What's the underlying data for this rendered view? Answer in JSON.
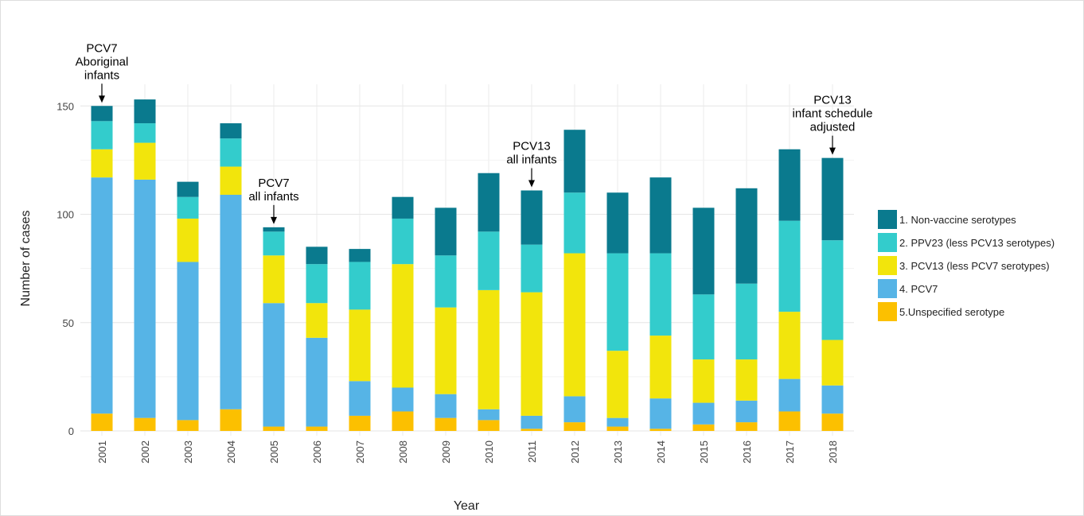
{
  "chart_data": {
    "type": "stacked_bar",
    "x_label": "Year",
    "y_label": "Number of cases",
    "categories": [
      "2001",
      "2002",
      "2003",
      "2004",
      "2005",
      "2006",
      "2007",
      "2008",
      "2009",
      "2010",
      "2011",
      "2012",
      "2013",
      "2014",
      "2015",
      "2016",
      "2017",
      "2018"
    ],
    "series": [
      {
        "name": "1. Non-vaccine serotypes",
        "color": "#0a7a8e",
        "values": [
          7,
          11,
          7,
          7,
          2,
          8,
          6,
          10,
          22,
          27,
          25,
          29,
          28,
          35,
          40,
          44,
          33,
          38
        ]
      },
      {
        "name": "2. PPV23 (less PCV13 serotypes)",
        "color": "#33cccc",
        "values": [
          13,
          9,
          10,
          13,
          11,
          18,
          22,
          21,
          24,
          27,
          22,
          28,
          45,
          38,
          30,
          35,
          42,
          46
        ]
      },
      {
        "name": "3. PCV13 (less PCV7 serotypes)",
        "color": "#f2e50c",
        "values": [
          13,
          17,
          20,
          13,
          22,
          16,
          33,
          57,
          40,
          55,
          57,
          66,
          31,
          29,
          20,
          19,
          31,
          21
        ]
      },
      {
        "name": "4. PCV7",
        "color": "#56b4e6",
        "values": [
          109,
          110,
          73,
          99,
          57,
          41,
          16,
          11,
          11,
          5,
          6,
          12,
          4,
          14,
          10,
          10,
          15,
          13
        ]
      },
      {
        "name": "5.Unspecified serotype",
        "color": "#fcc000",
        "values": [
          8,
          6,
          5,
          10,
          2,
          2,
          7,
          9,
          6,
          5,
          1,
          4,
          2,
          1,
          3,
          4,
          9,
          8
        ]
      }
    ],
    "ylim": [
      0,
      160
    ],
    "yticks": [
      0,
      50,
      100,
      150
    ],
    "grid": true,
    "legend": "right",
    "annotations": [
      {
        "x": "2001",
        "lines": [
          "PCV7",
          "Aboriginal",
          "infants"
        ]
      },
      {
        "x": "2005",
        "lines": [
          "PCV7",
          "all infants"
        ]
      },
      {
        "x": "2011",
        "lines": [
          "PCV13",
          "all infants"
        ]
      },
      {
        "x": "2018",
        "lines": [
          "PCV13",
          "infant schedule",
          "adjusted"
        ]
      }
    ]
  }
}
